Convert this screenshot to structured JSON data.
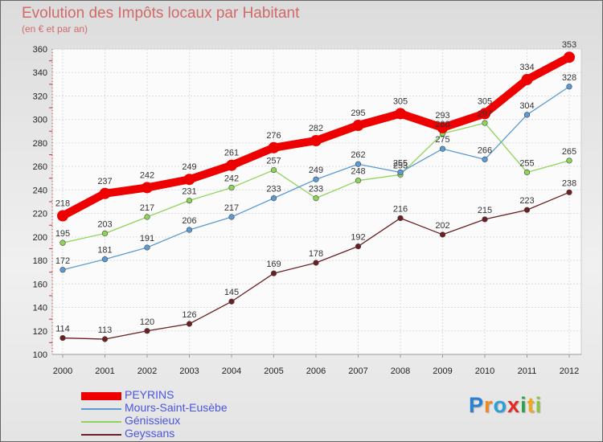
{
  "header": {
    "title": "Evolution des Impôts locaux par Habitant",
    "subtitle": "(en € et par an)"
  },
  "chart_data": {
    "type": "line",
    "title": "Evolution des Impôts locaux par Habitant",
    "subtitle": "(en € et par an)",
    "xlabel": "",
    "ylabel": "",
    "x": [
      "2000",
      "2001",
      "2002",
      "2003",
      "2004",
      "2005",
      "2006",
      "2007",
      "2008",
      "2009",
      "2010",
      "2011",
      "2012"
    ],
    "ylim": [
      100,
      360
    ],
    "yticks": [
      100,
      120,
      140,
      160,
      180,
      200,
      220,
      240,
      260,
      280,
      300,
      320,
      340,
      360
    ],
    "grid": true,
    "legend": "bottom-left",
    "series": [
      {
        "name": "PEYRINS",
        "color": "#ee0000",
        "values": [
          218,
          237,
          242,
          249,
          261,
          276,
          282,
          295,
          305,
          293,
          305,
          334,
          353
        ]
      },
      {
        "name": "Mours-Saint-Eusèbe",
        "color": "#5b9bd5",
        "values": [
          172,
          181,
          191,
          206,
          217,
          233,
          249,
          262,
          255,
          275,
          266,
          304,
          328
        ]
      },
      {
        "name": "Génissieux",
        "color": "#8fd45a",
        "values": [
          195,
          203,
          217,
          231,
          242,
          257,
          233,
          248,
          253,
          288,
          297,
          255,
          265
        ]
      },
      {
        "name": "Geyssans",
        "color": "#6b1f22",
        "values": [
          114,
          113,
          120,
          126,
          145,
          169,
          178,
          192,
          216,
          202,
          215,
          223,
          238
        ]
      }
    ]
  },
  "logo": {
    "letters": [
      "P",
      "r",
      "o",
      "x",
      "i",
      "t",
      "i"
    ],
    "colors": [
      "#2a7fd4",
      "#f08a1c",
      "#2a9fd8",
      "#e8281e",
      "#2aa44a",
      "#f0a81c",
      "#8cc63f"
    ]
  }
}
